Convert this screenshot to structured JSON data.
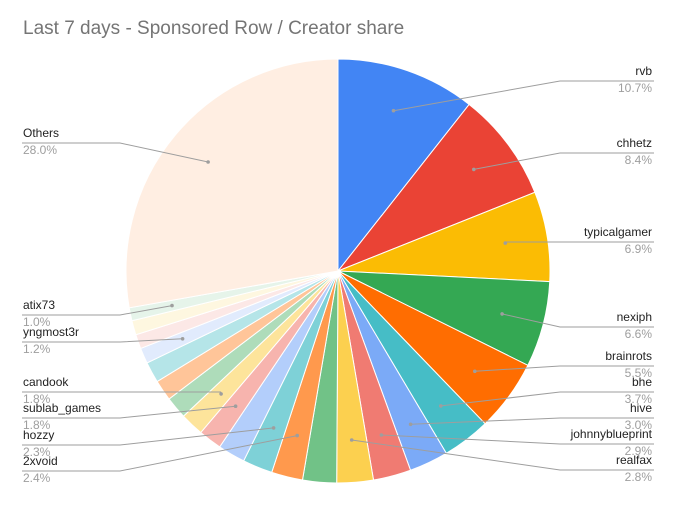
{
  "chart_data": {
    "type": "pie",
    "title": "Last 7 days - Sponsored Row / Creator share",
    "legend": "labels beside slices",
    "slices": [
      {
        "name": "rvb",
        "value": 10.7,
        "label": "10.7%",
        "color": "#4285f4"
      },
      {
        "name": "chhetz",
        "value": 8.4,
        "label": "8.4%",
        "color": "#ea4335"
      },
      {
        "name": "typicalgamer",
        "value": 6.9,
        "label": "6.9%",
        "color": "#fbbc04"
      },
      {
        "name": "nexiph",
        "value": 6.6,
        "label": "6.6%",
        "color": "#34a853"
      },
      {
        "name": "brainrots",
        "value": 5.5,
        "label": "5.5%",
        "color": "#ff6d01"
      },
      {
        "name": "bhe",
        "value": 3.7,
        "label": "3.7%",
        "color": "#46bdc6"
      },
      {
        "name": "hive",
        "value": 3.0,
        "label": "3.0%",
        "color": "#7baaf7"
      },
      {
        "name": "johnnyblueprint",
        "value": 2.9,
        "label": "2.9%",
        "color": "#f07b72"
      },
      {
        "name": "realfax",
        "value": 2.8,
        "label": "2.8%",
        "color": "#fcd04f"
      },
      {
        "name": "",
        "value": 2.6,
        "label": "",
        "color": "#71c287"
      },
      {
        "name": "2xvoid",
        "value": 2.4,
        "label": "2.4%",
        "color": "#ff994d"
      },
      {
        "name": "hozzy",
        "value": 2.3,
        "label": "2.3%",
        "color": "#7ed1d7"
      },
      {
        "name": "",
        "value": 2.1,
        "label": "",
        "color": "#b3cefb"
      },
      {
        "name": "sublab_games",
        "value": 1.8,
        "label": "1.8%",
        "color": "#f7b4ae"
      },
      {
        "name": "candook",
        "value": 1.8,
        "label": "1.8%",
        "color": "#fde49b"
      },
      {
        "name": "",
        "value": 1.7,
        "label": "",
        "color": "#aedcba"
      },
      {
        "name": "",
        "value": 1.6,
        "label": "",
        "color": "#ffc599"
      },
      {
        "name": "",
        "value": 1.6,
        "label": "",
        "color": "#b5e5e8"
      },
      {
        "name": "yngmost3r",
        "value": 1.2,
        "label": "1.2%",
        "color": "#e1ebfd"
      },
      {
        "name": "",
        "value": 1.1,
        "label": "",
        "color": "#fce8e6"
      },
      {
        "name": "",
        "value": 1.1,
        "label": "",
        "color": "#fef7e0"
      },
      {
        "name": "atix73",
        "value": 1.0,
        "label": "1.0%",
        "color": "#e6f4ea"
      },
      {
        "name": "Others",
        "value": 28.0,
        "label": "28.0%",
        "color": "#ffeee2"
      }
    ]
  }
}
